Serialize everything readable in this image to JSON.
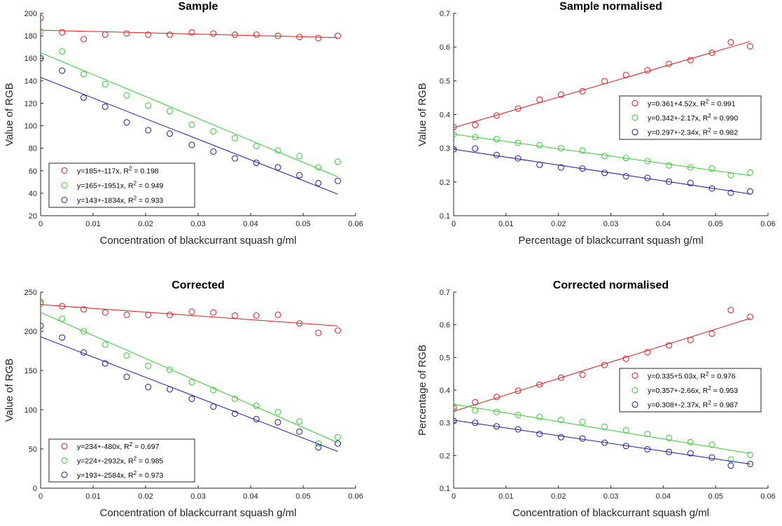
{
  "chart_data": [
    {
      "type": "scatter",
      "title": "Sample",
      "xlabel": "Concentration of blackcurrant squash g/ml",
      "ylabel": "Value of RGB",
      "xlim": [
        0,
        0.06
      ],
      "ylim": [
        20,
        200
      ],
      "xticks": [
        "0",
        "0.01",
        "0.02",
        "0.03",
        "0.04",
        "0.05",
        "0.06"
      ],
      "yticks": [
        "20",
        "40",
        "60",
        "80",
        "100",
        "120",
        "140",
        "160",
        "180",
        "200"
      ],
      "legend_position": "bottom-left",
      "x": [
        0,
        0.0041,
        0.0082,
        0.0123,
        0.0164,
        0.0205,
        0.0246,
        0.0288,
        0.0329,
        0.037,
        0.0411,
        0.0452,
        0.0493,
        0.0529,
        0.0566
      ],
      "series": [
        {
          "name": "y=185+-117x, R",
          "r2": "2",
          "r2_value": " = 0.198",
          "color": "#e41a1c",
          "fit": [
            185,
            -117
          ],
          "values": [
            196,
            183,
            177,
            181,
            182,
            181,
            181,
            183,
            182,
            181,
            181,
            180,
            179,
            178,
            180
          ]
        },
        {
          "name": "y=165+-1951x, R",
          "r2": "2",
          "r2_value": " = 0.949",
          "color": "#33cc33",
          "fit": [
            165,
            -1951
          ],
          "values": [
            184,
            166,
            146,
            137,
            127,
            118,
            113,
            101,
            95,
            89,
            82,
            78,
            73,
            63,
            68
          ]
        },
        {
          "name": "y=143+-1834x, R",
          "r2": "2",
          "r2_value": " = 0.933",
          "color": "#1a1aa6",
          "fit": [
            143,
            -1834
          ],
          "values": [
            160,
            149,
            125,
            117,
            103,
            96,
            93,
            83,
            77,
            71,
            67,
            63,
            56,
            49,
            51
          ]
        }
      ]
    },
    {
      "type": "scatter",
      "title": "Sample normalised",
      "xlabel": "Percentage of blackcurrant squash g/ml",
      "ylabel": "Value of RGB",
      "xlim": [
        0,
        0.06
      ],
      "ylim": [
        0.1,
        0.7
      ],
      "xticks": [
        "0",
        "0.01",
        "0.02",
        "0.03",
        "0.04",
        "0.05",
        "0.06"
      ],
      "yticks": [
        "0.1",
        "0.2",
        "0.3",
        "0.4",
        "0.5",
        "0.6",
        "0.7"
      ],
      "legend_position": "right",
      "x": [
        0,
        0.0041,
        0.0082,
        0.0123,
        0.0164,
        0.0205,
        0.0246,
        0.0288,
        0.0329,
        0.037,
        0.0411,
        0.0452,
        0.0493,
        0.0529,
        0.0566
      ],
      "series": [
        {
          "name": "y=0.361+4.52x, R",
          "r2": "2",
          "r2_value": " = 0.991",
          "color": "#e41a1c",
          "fit": [
            0.361,
            4.52
          ],
          "values": [
            0.363,
            0.369,
            0.397,
            0.418,
            0.444,
            0.459,
            0.469,
            0.499,
            0.517,
            0.531,
            0.55,
            0.561,
            0.583,
            0.614,
            0.602
          ]
        },
        {
          "name": "y=0.342+-2.17x, R",
          "r2": "2",
          "r2_value": " = 0.990",
          "color": "#33cc33",
          "fit": [
            0.342,
            -2.17
          ],
          "values": [
            0.341,
            0.333,
            0.327,
            0.316,
            0.309,
            0.3,
            0.293,
            0.277,
            0.271,
            0.262,
            0.249,
            0.243,
            0.24,
            0.22,
            0.228
          ]
        },
        {
          "name": "y=0.297+-2.34x, R",
          "r2": "2",
          "r2_value": " = 0.982",
          "color": "#1a1aa6",
          "fit": [
            0.297,
            -2.34
          ],
          "values": [
            0.297,
            0.299,
            0.28,
            0.27,
            0.251,
            0.243,
            0.24,
            0.227,
            0.217,
            0.212,
            0.201,
            0.197,
            0.181,
            0.168,
            0.172
          ]
        }
      ]
    },
    {
      "type": "scatter",
      "title": "Corrected",
      "xlabel": "Concentration of blackcurrant squash g/ml",
      "ylabel": "Value of RGB",
      "xlim": [
        0,
        0.06
      ],
      "ylim": [
        0,
        250
      ],
      "xticks": [
        "0",
        "0.01",
        "0.02",
        "0.03",
        "0.04",
        "0.05",
        "0.06"
      ],
      "yticks": [
        "0",
        "50",
        "100",
        "150",
        "200",
        "250"
      ],
      "legend_position": "bottom-left",
      "x": [
        0,
        0.0041,
        0.0082,
        0.0123,
        0.0164,
        0.0205,
        0.0246,
        0.0288,
        0.0329,
        0.037,
        0.0411,
        0.0452,
        0.0493,
        0.0529,
        0.0566
      ],
      "series": [
        {
          "name": "y=234+-480x, R",
          "r2": "2",
          "r2_value": " = 0.697",
          "color": "#e41a1c",
          "fit": [
            234,
            -480
          ],
          "values": [
            237,
            232,
            228,
            224,
            221,
            221,
            221,
            225,
            224,
            220,
            220,
            221,
            210,
            198,
            201
          ]
        },
        {
          "name": "y=224+-2932x, R",
          "r2": "2",
          "r2_value": " = 0.985",
          "color": "#33cc33",
          "fit": [
            224,
            -2932
          ],
          "values": [
            235,
            216,
            200,
            183,
            169,
            156,
            151,
            135,
            125,
            114,
            105,
            97,
            85,
            57,
            65
          ]
        },
        {
          "name": "y=193+-2584x, R",
          "r2": "2",
          "r2_value": " = 0.973",
          "color": "#1a1aa6",
          "fit": [
            193,
            -2584
          ],
          "values": [
            207,
            192,
            173,
            159,
            142,
            129,
            126,
            114,
            104,
            95,
            88,
            84,
            72,
            52,
            57
          ]
        }
      ]
    },
    {
      "type": "scatter",
      "title": "Corrected normalised",
      "xlabel": "Concentration of blackcurrant squash g/ml",
      "ylabel": "Percentage of RGB",
      "xlim": [
        0,
        0.06
      ],
      "ylim": [
        0.1,
        0.7
      ],
      "xticks": [
        "0",
        "0.01",
        "0.02",
        "0.03",
        "0.04",
        "0.05",
        "0.06"
      ],
      "yticks": [
        "0.1",
        "0.2",
        "0.3",
        "0.4",
        "0.5",
        "0.6",
        "0.7"
      ],
      "legend_position": "right",
      "x": [
        0,
        0.0041,
        0.0082,
        0.0123,
        0.0164,
        0.0205,
        0.0246,
        0.0288,
        0.0329,
        0.037,
        0.0411,
        0.0452,
        0.0493,
        0.0529,
        0.0566
      ],
      "series": [
        {
          "name": "y=0.335+5.03x, R",
          "r2": "2",
          "r2_value": " = 0.976",
          "color": "#e41a1c",
          "fit": [
            0.335,
            5.03
          ],
          "values": [
            0.345,
            0.363,
            0.379,
            0.398,
            0.417,
            0.438,
            0.447,
            0.477,
            0.496,
            0.516,
            0.537,
            0.553,
            0.573,
            0.645,
            0.624
          ]
        },
        {
          "name": "y=0.357+-2.66x, R",
          "r2": "2",
          "r2_value": " = 0.953",
          "color": "#33cc33",
          "fit": [
            0.357,
            -2.66
          ],
          "values": [
            0.35,
            0.338,
            0.333,
            0.324,
            0.318,
            0.309,
            0.303,
            0.288,
            0.277,
            0.266,
            0.254,
            0.241,
            0.233,
            0.188,
            0.202
          ]
        },
        {
          "name": "y=0.308+-2.37x, R",
          "r2": "2",
          "r2_value": " = 0.987",
          "color": "#1a1aa6",
          "fit": [
            0.308,
            -2.37
          ],
          "values": [
            0.306,
            0.3,
            0.289,
            0.28,
            0.266,
            0.256,
            0.252,
            0.239,
            0.229,
            0.219,
            0.211,
            0.207,
            0.194,
            0.169,
            0.174
          ]
        }
      ]
    }
  ]
}
